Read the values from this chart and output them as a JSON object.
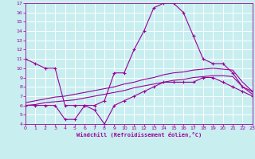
{
  "background_color": "#c8eef0",
  "line_color": "#990099",
  "grid_color": "#ffffff",
  "xlabel": "Windchill (Refroidissement éolien,°C)",
  "xlim": [
    0,
    23
  ],
  "ylim": [
    4,
    17
  ],
  "xticks": [
    0,
    1,
    2,
    3,
    4,
    5,
    6,
    7,
    8,
    9,
    10,
    11,
    12,
    13,
    14,
    15,
    16,
    17,
    18,
    19,
    20,
    21,
    22,
    23
  ],
  "yticks": [
    4,
    5,
    6,
    7,
    8,
    9,
    10,
    11,
    12,
    13,
    14,
    15,
    16,
    17
  ],
  "line1_x": [
    0,
    1,
    2,
    3,
    4,
    5,
    6,
    7,
    8,
    9,
    10,
    11,
    12,
    13,
    14,
    15,
    16,
    17,
    18,
    19,
    20,
    21,
    22,
    23
  ],
  "line1_y": [
    11,
    10.5,
    10,
    10,
    6,
    6,
    6,
    6,
    6.5,
    9.5,
    9.5,
    12,
    14,
    16.5,
    17,
    17,
    16,
    13.5,
    11,
    10.5,
    10.5,
    9.5,
    8,
    7.5
  ],
  "line2_x": [
    0,
    1,
    2,
    3,
    4,
    5,
    6,
    7,
    8,
    9,
    10,
    11,
    12,
    13,
    14,
    15,
    16,
    17,
    18,
    19,
    20,
    21,
    22,
    23
  ],
  "line2_y": [
    6.0,
    6.0,
    6.0,
    6.0,
    4.5,
    4.5,
    6.0,
    5.5,
    4.0,
    6.0,
    6.5,
    7.0,
    7.5,
    8.0,
    8.5,
    8.5,
    8.5,
    8.5,
    9.0,
    9.0,
    8.5,
    8.0,
    7.5,
    7.0
  ],
  "line3_x": [
    0,
    1,
    2,
    3,
    4,
    5,
    6,
    7,
    8,
    9,
    10,
    11,
    12,
    13,
    14,
    15,
    16,
    17,
    18,
    19,
    20,
    21,
    22,
    23
  ],
  "line3_y": [
    6.0,
    6.1,
    6.3,
    6.4,
    6.5,
    6.6,
    6.8,
    7.0,
    7.2,
    7.4,
    7.6,
    7.9,
    8.1,
    8.3,
    8.5,
    8.7,
    8.8,
    9.0,
    9.1,
    9.2,
    9.2,
    9.1,
    8.0,
    7.2
  ],
  "line4_x": [
    0,
    1,
    2,
    3,
    4,
    5,
    6,
    7,
    8,
    9,
    10,
    11,
    12,
    13,
    14,
    15,
    16,
    17,
    18,
    19,
    20,
    21,
    22,
    23
  ],
  "line4_y": [
    6.3,
    6.5,
    6.7,
    6.9,
    7.0,
    7.2,
    7.4,
    7.6,
    7.8,
    8.0,
    8.3,
    8.5,
    8.8,
    9.0,
    9.3,
    9.5,
    9.6,
    9.8,
    9.9,
    10.0,
    9.9,
    9.8,
    8.5,
    7.5
  ]
}
